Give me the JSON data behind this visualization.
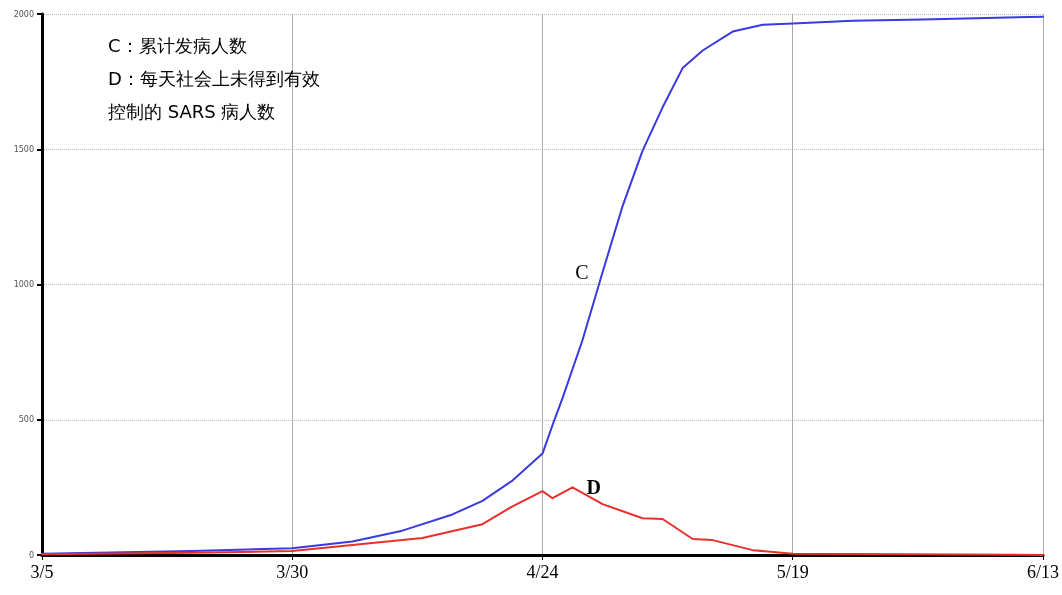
{
  "chart_data": {
    "type": "line",
    "annotations": [
      "C：累计发病人数",
      "D：每天社会上未得到有效",
      "控制的 SARS 病人数"
    ],
    "xlim": [
      "--03-05",
      "--06-13"
    ],
    "xticks": [
      {
        "value": "--03-05",
        "label": "3/5"
      },
      {
        "value": "--03-30",
        "label": "3/30"
      },
      {
        "value": "--04-24",
        "label": "4/24"
      },
      {
        "value": "--05-19",
        "label": "5/19"
      },
      {
        "value": "--06-13",
        "label": "6/13"
      }
    ],
    "ylim": [
      0,
      2000
    ],
    "yticks": [
      0,
      500,
      1000,
      1500,
      2000
    ],
    "grid": true,
    "marker": "none",
    "line_style": "solid",
    "series": [
      {
        "name": "C",
        "color": "#3a3ae0",
        "x": [
          "--03-05",
          "--03-20",
          "--03-30",
          "--04-05",
          "--04-10",
          "--04-15",
          "--04-18",
          "--04-21",
          "--04-24",
          "--04-25",
          "--04-26",
          "--04-28",
          "--04-30",
          "--05-02",
          "--05-04",
          "--05-06",
          "--05-08",
          "--05-10",
          "--05-13",
          "--05-16",
          "--05-19",
          "--05-25",
          "--06-01",
          "--06-13"
        ],
        "values": [
          5,
          15,
          25,
          50,
          90,
          150,
          200,
          275,
          375,
          480,
          580,
          795,
          1045,
          1290,
          1495,
          1655,
          1800,
          1865,
          1935,
          1960,
          1965,
          1975,
          1980,
          1990
        ]
      },
      {
        "name": "D",
        "color": "#e8302a",
        "x": [
          "--03-05",
          "--03-20",
          "--03-30",
          "--04-05",
          "--04-12",
          "--04-18",
          "--04-21",
          "--04-24",
          "--04-25",
          "--04-27",
          "--04-30",
          "--05-04",
          "--05-06",
          "--05-09",
          "--05-11",
          "--05-15",
          "--05-19",
          "--06-13"
        ],
        "values": [
          3,
          8,
          15,
          37,
          63,
          114,
          180,
          236,
          210,
          250,
          188,
          136,
          133,
          59,
          55,
          18,
          5,
          0
        ]
      }
    ]
  }
}
